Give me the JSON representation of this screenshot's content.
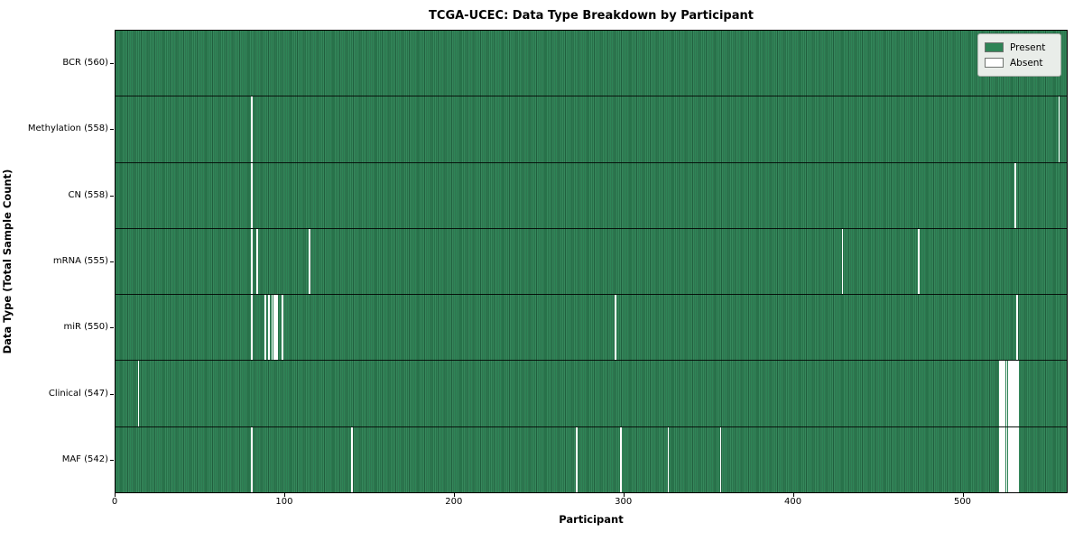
{
  "chart_data": {
    "type": "heatmap",
    "title": "TCGA-UCEC: Data Type Breakdown by Participant",
    "xlabel": "Participant",
    "ylabel": "Data Type (Total Sample Count)",
    "x_ticks": [
      0,
      100,
      200,
      300,
      400,
      500
    ],
    "xlim": [
      0,
      562
    ],
    "n_participants": 560,
    "grid": false,
    "legend_position": "upper right",
    "colors": {
      "present": "#2e8456",
      "absent": "#ffffff"
    },
    "legend": [
      {
        "label": "Present",
        "color": "#2e8456"
      },
      {
        "label": "Absent",
        "color": "#ffffff"
      }
    ],
    "rows": [
      {
        "name": "BCR",
        "label": "BCR (560)",
        "present_count": 560,
        "absent_participants": []
      },
      {
        "name": "Methylation",
        "label": "Methylation (558)",
        "present_count": 558,
        "absent_participants": [
          80,
          557
        ]
      },
      {
        "name": "CN",
        "label": "CN (558)",
        "present_count": 558,
        "absent_participants": [
          80,
          531
        ]
      },
      {
        "name": "mRNA",
        "label": "mRNA (555)",
        "present_count": 555,
        "absent_participants": [
          80,
          83,
          114,
          429,
          474
        ]
      },
      {
        "name": "miR",
        "label": "miR (550)",
        "present_count": 550,
        "absent_participants": [
          80,
          88,
          90,
          92,
          93,
          94,
          95,
          98,
          295,
          532
        ]
      },
      {
        "name": "Clinical",
        "label": "Clinical (547)",
        "present_count": 547,
        "absent_participants": [
          13,
          522,
          523,
          524,
          525,
          526,
          527,
          528,
          529,
          530,
          531,
          532,
          533
        ]
      },
      {
        "name": "MAF",
        "label": "MAF (542)",
        "present_count": 542,
        "absent_participants": [
          80,
          139,
          272,
          298,
          326,
          357,
          522,
          523,
          524,
          525,
          526,
          527,
          528,
          529,
          530,
          531,
          532,
          533
        ]
      }
    ]
  }
}
